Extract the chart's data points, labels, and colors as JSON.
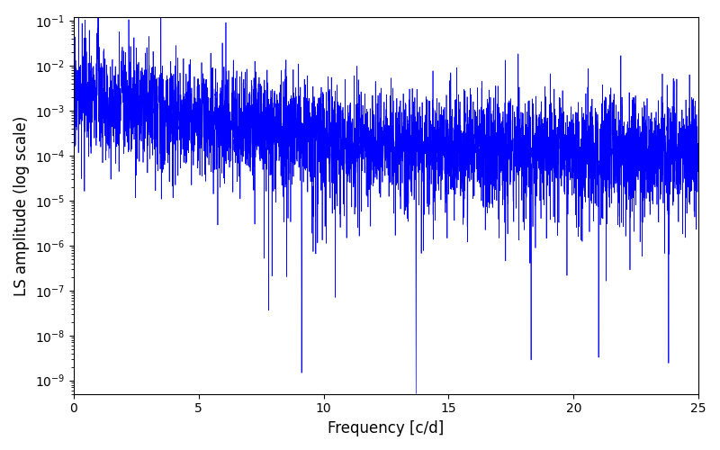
{
  "title": "",
  "xlabel": "Frequency [c/d]",
  "ylabel": "LS amplitude (log scale)",
  "line_color": "#0000FF",
  "line_width": 0.5,
  "xmin": 0,
  "xmax": 25,
  "ymin": 5e-10,
  "ymax": 0.12,
  "yscale": "log",
  "figsize": [
    8.0,
    5.0
  ],
  "dpi": 100,
  "seed": 17,
  "n_points": 5000,
  "peak_freq": 0.97,
  "peak_amp": 0.045,
  "noise_log_sigma": 1.4,
  "alpha": 1.6
}
